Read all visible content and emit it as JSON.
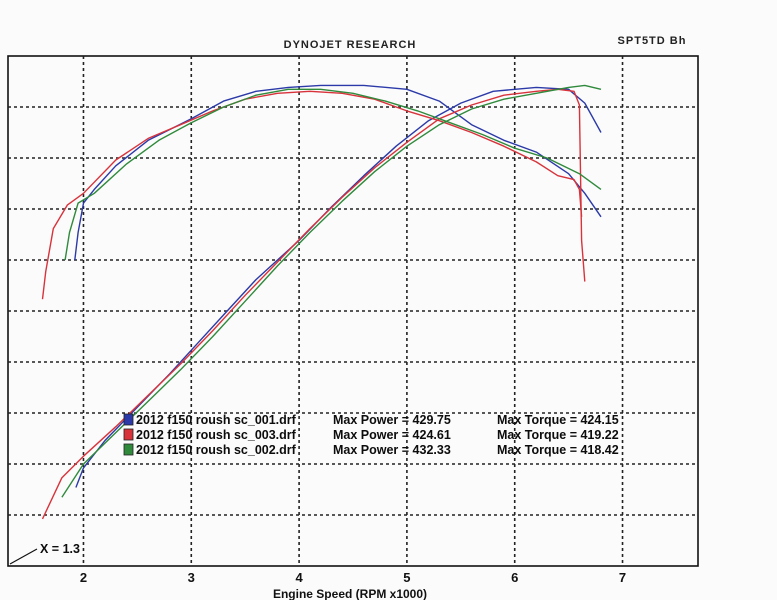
{
  "header": {
    "title": "DYNOJET RESEARCH",
    "corner_code": "SPT5TD Bh"
  },
  "chart_data": {
    "type": "line",
    "title": "DYNOJET RESEARCH",
    "xlabel": "Engine Speed (RPM x1000)",
    "ylabel": "",
    "xlim": [
      1.3,
      7.7
    ],
    "ticks": [
      "2",
      "3",
      "4",
      "5",
      "6",
      "7"
    ],
    "grid": true,
    "legend_placement": "center-left",
    "x_marker": "X = 1.3",
    "series": [
      {
        "name": "2012 f150 roush sc_001.drf",
        "max_power": "Max Power = 429.75",
        "max_torque": "Max Torque = 424.15",
        "color": "#2b3aa8",
        "power": [
          [
            1.93,
            340
          ],
          [
            2.0,
            350
          ],
          [
            2.2,
            364
          ],
          [
            2.5,
            381
          ],
          [
            2.8,
            398
          ],
          [
            3.0,
            410
          ],
          [
            3.3,
            428
          ],
          [
            3.6,
            446
          ],
          [
            4.0,
            466
          ],
          [
            4.3,
            483
          ],
          [
            4.6,
            499
          ],
          [
            4.9,
            514
          ],
          [
            5.2,
            527
          ],
          [
            5.5,
            536
          ],
          [
            5.8,
            542
          ],
          [
            6.2,
            544
          ],
          [
            6.5,
            543
          ],
          [
            6.65,
            536
          ],
          [
            6.8,
            521
          ]
        ],
        "torque": [
          [
            1.92,
            456
          ],
          [
            1.95,
            470
          ],
          [
            2.0,
            485
          ],
          [
            2.1,
            492
          ],
          [
            2.3,
            504
          ],
          [
            2.6,
            517
          ],
          [
            3.0,
            528
          ],
          [
            3.3,
            537
          ],
          [
            3.6,
            542
          ],
          [
            3.9,
            544
          ],
          [
            4.2,
            545
          ],
          [
            4.6,
            545
          ],
          [
            5.0,
            543
          ],
          [
            5.3,
            537
          ],
          [
            5.6,
            525
          ],
          [
            5.9,
            517
          ],
          [
            6.2,
            511
          ],
          [
            6.5,
            500
          ],
          [
            6.65,
            490
          ],
          [
            6.8,
            478
          ]
        ]
      },
      {
        "name": "2012 f150 roush sc_003.drf",
        "max_power": "Max Power = 424.61",
        "max_torque": "Max Torque = 419.22",
        "color": "#d8333b",
        "power": [
          [
            1.62,
            324
          ],
          [
            1.8,
            345
          ],
          [
            2.0,
            356
          ],
          [
            2.3,
            371
          ],
          [
            2.6,
            387
          ],
          [
            2.9,
            403
          ],
          [
            3.2,
            420
          ],
          [
            3.5,
            438
          ],
          [
            3.8,
            455
          ],
          [
            4.1,
            472
          ],
          [
            4.4,
            488
          ],
          [
            4.7,
            503
          ],
          [
            5.0,
            516
          ],
          [
            5.3,
            528
          ],
          [
            5.6,
            535
          ],
          [
            5.9,
            540
          ],
          [
            6.2,
            542
          ],
          [
            6.4,
            543
          ],
          [
            6.55,
            542
          ],
          [
            6.6,
            535
          ],
          [
            6.62,
            466
          ],
          [
            6.65,
            445
          ]
        ],
        "torque": [
          [
            1.62,
            436
          ],
          [
            1.65,
            450
          ],
          [
            1.72,
            472
          ],
          [
            1.85,
            484
          ],
          [
            2.0,
            490
          ],
          [
            2.3,
            507
          ],
          [
            2.6,
            518
          ],
          [
            2.9,
            525
          ],
          [
            3.2,
            532
          ],
          [
            3.5,
            538
          ],
          [
            3.8,
            541
          ],
          [
            4.1,
            542
          ],
          [
            4.4,
            541
          ],
          [
            4.7,
            538
          ],
          [
            5.0,
            532
          ],
          [
            5.3,
            527
          ],
          [
            5.6,
            521
          ],
          [
            5.9,
            514
          ],
          [
            6.2,
            506
          ],
          [
            6.4,
            499
          ],
          [
            6.55,
            497
          ],
          [
            6.6,
            492
          ],
          [
            6.62,
            478
          ]
        ]
      },
      {
        "name": "2012 f150 roush sc_002.drf",
        "max_power": "Max Power = 432.33",
        "max_torque": "Max Torque = 418.42",
        "color": "#2f8a3c",
        "power": [
          [
            1.8,
            335
          ],
          [
            2.0,
            352
          ],
          [
            2.3,
            368
          ],
          [
            2.6,
            384
          ],
          [
            2.9,
            400
          ],
          [
            3.2,
            417
          ],
          [
            3.5,
            435
          ],
          [
            3.8,
            453
          ],
          [
            4.1,
            470
          ],
          [
            4.4,
            486
          ],
          [
            4.7,
            501
          ],
          [
            5.0,
            514
          ],
          [
            5.3,
            525
          ],
          [
            5.6,
            533
          ],
          [
            5.9,
            538
          ],
          [
            6.2,
            541
          ],
          [
            6.5,
            544
          ],
          [
            6.65,
            545
          ],
          [
            6.8,
            543
          ]
        ],
        "torque": [
          [
            1.83,
            456
          ],
          [
            1.87,
            470
          ],
          [
            1.95,
            485
          ],
          [
            2.1,
            490
          ],
          [
            2.4,
            505
          ],
          [
            2.7,
            517
          ],
          [
            3.0,
            526
          ],
          [
            3.3,
            534
          ],
          [
            3.6,
            540
          ],
          [
            3.9,
            543
          ],
          [
            4.2,
            543
          ],
          [
            4.5,
            541
          ],
          [
            4.8,
            537
          ],
          [
            5.1,
            532
          ],
          [
            5.4,
            526
          ],
          [
            5.7,
            520
          ],
          [
            6.0,
            513
          ],
          [
            6.3,
            508
          ],
          [
            6.6,
            500
          ],
          [
            6.8,
            492
          ]
        ]
      }
    ]
  }
}
